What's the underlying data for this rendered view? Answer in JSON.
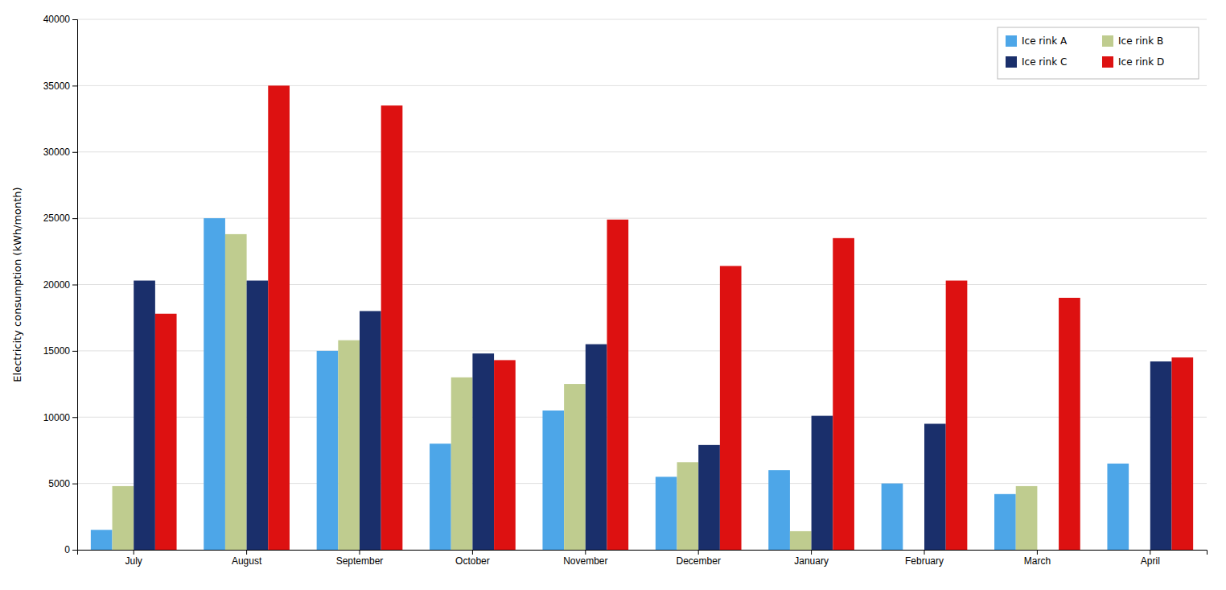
{
  "chart_data": {
    "type": "bar",
    "categories": [
      "July",
      "August",
      "September",
      "October",
      "November",
      "December",
      "January",
      "February",
      "March",
      "April"
    ],
    "series": [
      {
        "name": "Ice rink A",
        "color": "#4da6e8",
        "values": [
          1500,
          25000,
          15000,
          8000,
          10500,
          5500,
          6000,
          5000,
          4200,
          6500
        ]
      },
      {
        "name": "Ice rink B",
        "color": "#bfcc8f",
        "values": [
          4800,
          23800,
          15800,
          13000,
          12500,
          6600,
          1400,
          0,
          4800,
          0
        ]
      },
      {
        "name": "Ice rink C",
        "color": "#1a2f6b",
        "values": [
          20300,
          20300,
          18000,
          14800,
          15500,
          7900,
          10100,
          9500,
          0,
          14200
        ]
      },
      {
        "name": "Ice rink D",
        "color": "#dd1111",
        "values": [
          17800,
          35000,
          33500,
          14300,
          24900,
          21400,
          23500,
          20300,
          19000,
          14500
        ]
      }
    ],
    "ylabel": "Electricity consumption (kWh/month)",
    "ylim": [
      0,
      40000
    ],
    "yticks": [
      0,
      5000,
      10000,
      15000,
      20000,
      25000,
      30000,
      35000,
      40000
    ],
    "grid": true,
    "legend": "top-right"
  }
}
